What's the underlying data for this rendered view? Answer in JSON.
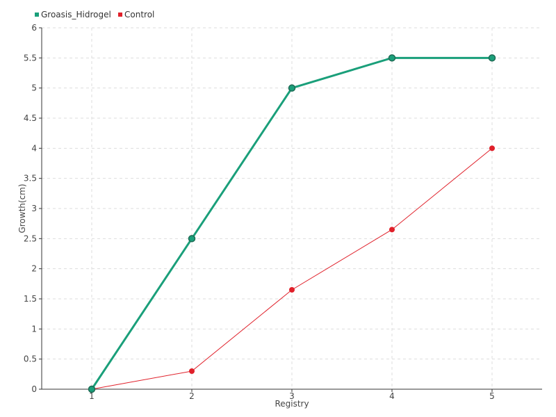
{
  "chart_data": {
    "type": "line",
    "xlabel": "Registry",
    "ylabel": "Growth(cm)",
    "x": [
      1,
      2,
      3,
      4,
      5
    ],
    "xlim": [
      0.5,
      5.5
    ],
    "ylim": [
      0,
      6
    ],
    "yticks": [
      "0",
      "0.5",
      "1",
      "1.5",
      "2",
      "2.5",
      "3",
      "3.5",
      "4",
      "4.5",
      "5",
      "5.5",
      "6"
    ],
    "xticks": [
      "1",
      "2",
      "3",
      "4",
      "5"
    ],
    "grid": true,
    "legend_position": "top-left",
    "series": [
      {
        "name": "Groasis_Hidrogel",
        "color": "#1a9f7a",
        "values": [
          0,
          2.5,
          5,
          5.5,
          5.5
        ]
      },
      {
        "name": "Control",
        "color": "#e0202a",
        "values": [
          0,
          0.3,
          1.65,
          2.65,
          4
        ]
      }
    ]
  }
}
